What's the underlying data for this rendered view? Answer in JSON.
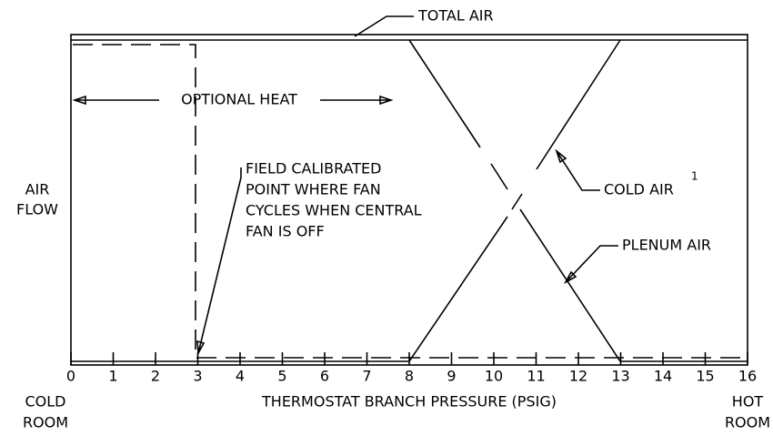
{
  "labels": {
    "total_air": "TOTAL AIR",
    "optional_heat": "OPTIONAL HEAT",
    "field_calibrated": [
      "FIELD CALIBRATED",
      "POINT WHERE FAN",
      "CYCLES WHEN CENTRAL",
      "FAN IS OFF"
    ],
    "cold_air": "COLD AIR",
    "cold_air_note": "1",
    "plenum_air": "PLENUM AIR",
    "y_axis": [
      "AIR",
      "FLOW"
    ],
    "x_left": [
      "COLD",
      "ROOM"
    ],
    "x_right": [
      "HOT",
      "ROOM"
    ],
    "x_axis": "THERMOSTAT BRANCH PRESSURE (PSIG)"
  },
  "axis": {
    "ticks": [
      0,
      1,
      2,
      3,
      4,
      5,
      6,
      7,
      8,
      9,
      10,
      11,
      12,
      13,
      14,
      15,
      16
    ]
  }
}
